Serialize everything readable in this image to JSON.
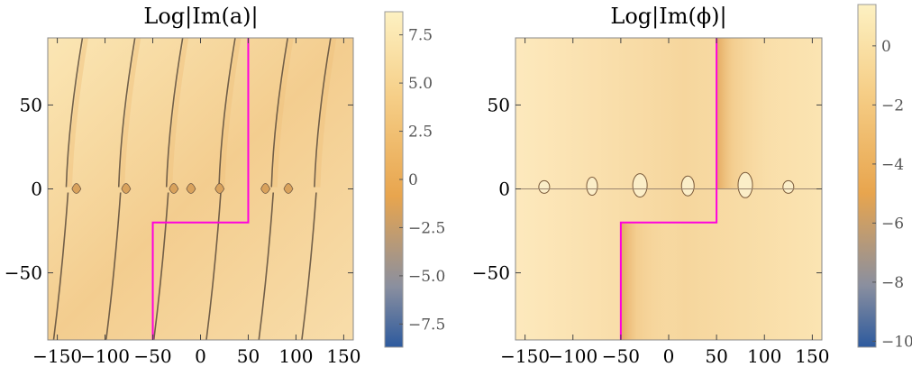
{
  "chart_data": [
    {
      "type": "heatmap",
      "title": "Log|Im(a)|",
      "xlabel": "",
      "ylabel": "",
      "xlim": [
        -160,
        160
      ],
      "ylim": [
        -90,
        90
      ],
      "x_ticks": [
        -150,
        -100,
        -50,
        0,
        50,
        100,
        150
      ],
      "x_tick_labels": [
        "−150",
        "−100",
        "−50",
        "0",
        "50",
        "100",
        "150"
      ],
      "y_ticks": [
        -50,
        0,
        50
      ],
      "y_tick_labels": [
        "−50",
        "0",
        "50"
      ],
      "colorbar": {
        "min": -8.7,
        "max": 8.7,
        "ticks": [
          7.5,
          5.0,
          2.5,
          0,
          -2.5,
          -5.0,
          -7.5
        ],
        "tick_labels": [
          "7.5",
          "5.0",
          "2.5",
          "0",
          "−2.5",
          "−5.0",
          "−7.5"
        ]
      },
      "contour_path": [
        [
          -50,
          -90
        ],
        [
          -50,
          -20
        ],
        [
          50,
          -20
        ],
        [
          50,
          90
        ]
      ],
      "contour_color": "#ff00dd",
      "branch_cut_y": 0,
      "dark_curves_x_at_zero": [
        -135,
        -80,
        -30,
        25,
        80,
        125
      ],
      "colormap_low": "#2d5a9e",
      "colormap_mid": "#e8a54e",
      "colormap_high": "#fdf1c2"
    },
    {
      "type": "heatmap",
      "title": "Log|Im(ϕ)|",
      "xlabel": "",
      "ylabel": "",
      "xlim": [
        -160,
        160
      ],
      "ylim": [
        -90,
        90
      ],
      "x_ticks": [
        -150,
        -100,
        -50,
        0,
        50,
        100,
        150
      ],
      "x_tick_labels": [
        "−150",
        "−100",
        "−50",
        "0",
        "50",
        "100",
        "150"
      ],
      "y_ticks": [
        -50,
        0,
        50
      ],
      "y_tick_labels": [
        "−50",
        "0",
        "50"
      ],
      "colorbar": {
        "min": -10.2,
        "max": 1.4,
        "ticks": [
          0,
          -2,
          -4,
          -6,
          -8,
          -10
        ],
        "tick_labels": [
          "0",
          "−2",
          "−4",
          "−6",
          "−8",
          "−10"
        ]
      },
      "contour_path": [
        [
          -50,
          -90
        ],
        [
          -50,
          -20
        ],
        [
          50,
          -20
        ],
        [
          50,
          90
        ]
      ],
      "contour_color": "#ff00dd",
      "branch_cut_y": 0,
      "colormap_low": "#2d5a9e",
      "colormap_mid": "#e8a54e",
      "colormap_high": "#fdf1c2"
    }
  ]
}
